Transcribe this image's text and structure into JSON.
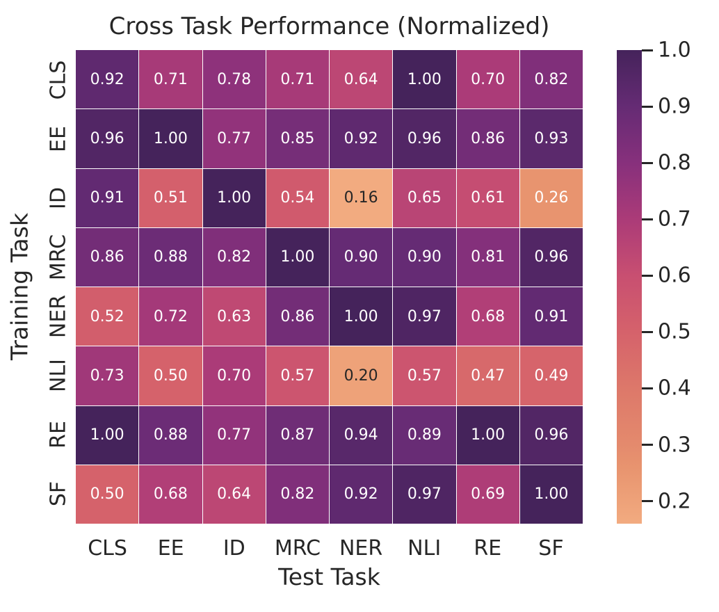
{
  "figure": {
    "background": "#ffffff",
    "text_color": "#262626"
  },
  "chart_data": {
    "type": "heatmap",
    "title": "Cross Task Performance (Normalized)",
    "xlabel": "Test Task",
    "ylabel": "Training Task",
    "x_categories": [
      "CLS",
      "EE",
      "ID",
      "MRC",
      "NER",
      "NLI",
      "RE",
      "SF"
    ],
    "y_categories": [
      "CLS",
      "EE",
      "ID",
      "MRC",
      "NER",
      "NLI",
      "RE",
      "SF"
    ],
    "rows": [
      [
        0.92,
        0.71,
        0.78,
        0.71,
        0.64,
        1.0,
        0.7,
        0.82
      ],
      [
        0.96,
        1.0,
        0.77,
        0.85,
        0.92,
        0.96,
        0.86,
        0.93
      ],
      [
        0.91,
        0.51,
        1.0,
        0.54,
        0.16,
        0.65,
        0.61,
        0.26
      ],
      [
        0.86,
        0.88,
        0.82,
        1.0,
        0.9,
        0.9,
        0.81,
        0.96
      ],
      [
        0.52,
        0.72,
        0.63,
        0.86,
        1.0,
        0.97,
        0.68,
        0.91
      ],
      [
        0.73,
        0.5,
        0.7,
        0.57,
        0.2,
        0.57,
        0.47,
        0.49
      ],
      [
        1.0,
        0.88,
        0.77,
        0.87,
        0.94,
        0.89,
        1.0,
        0.96
      ],
      [
        0.5,
        0.68,
        0.64,
        0.82,
        0.92,
        0.97,
        0.69,
        1.0
      ]
    ],
    "value_decimals": 2,
    "vmin": 0.16,
    "vmax": 1.0,
    "colorbar_ticks": [
      "1.0",
      "0.9",
      "0.8",
      "0.7",
      "0.6",
      "0.5",
      "0.4",
      "0.3",
      "0.2"
    ],
    "colormap_name": "flare",
    "colormap_stops": [
      {
        "v": 0.16,
        "c": "#f2ab80"
      },
      {
        "v": 0.26,
        "c": "#e8946f"
      },
      {
        "v": 0.3,
        "c": "#e48a6d"
      },
      {
        "v": 0.4,
        "c": "#dd786a"
      },
      {
        "v": 0.5,
        "c": "#d5626b"
      },
      {
        "v": 0.6,
        "c": "#c84f71"
      },
      {
        "v": 0.7,
        "c": "#ab3b78"
      },
      {
        "v": 0.8,
        "c": "#87307c"
      },
      {
        "v": 0.9,
        "c": "#652b74"
      },
      {
        "v": 1.0,
        "c": "#45235b"
      }
    ],
    "annotation_colors": {
      "light": "#ffffff",
      "dark": "#262626"
    },
    "grid_line_color": "#ffffff",
    "legend_position": "right-colorbar",
    "grid": false
  }
}
